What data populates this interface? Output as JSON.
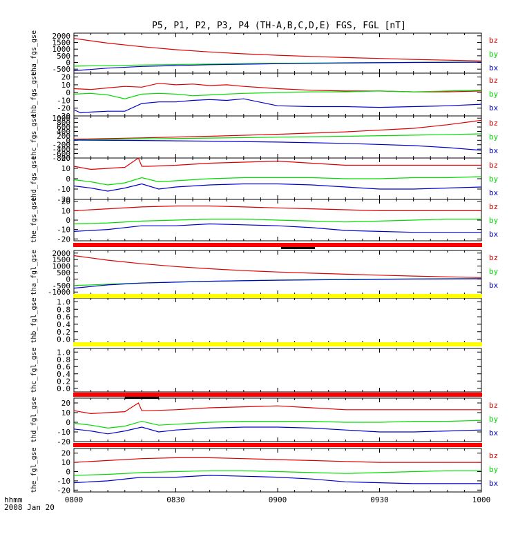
{
  "title": "P5, P1, P2, P3, P4 (TH-A,B,C,D,E) FGS, FGL [nT]",
  "footer": {
    "xunit": "hhmm",
    "date": "2008 Jan 20"
  },
  "colors": {
    "bz": "#dd0000",
    "by": "#00dd00",
    "bx": "#0000cc",
    "bar_red": "#ff0000",
    "bar_yellow": "#ffff00"
  },
  "chart_data": {
    "type": "line",
    "x_ticks": [
      "0800",
      "0830",
      "0900",
      "0930",
      "1000"
    ],
    "x_range_minutes": [
      480,
      600
    ],
    "panels": [
      {
        "ylabel": "tha_fgs_gse",
        "ylim": [
          -800,
          2200
        ],
        "yticks": [
          "2000",
          "1500",
          "1000",
          "500",
          "0",
          "-500"
        ],
        "series": [
          {
            "name": "bz",
            "x": [
              480,
              490,
              500,
              510,
              520,
              530,
              540,
              550,
              560,
              570,
              580,
              590,
              600
            ],
            "y": [
              1800,
              1450,
              1180,
              960,
              790,
              650,
              540,
              450,
              370,
              300,
              230,
              170,
              110
            ]
          },
          {
            "name": "by",
            "x": [
              480,
              500,
              520,
              540,
              560,
              580,
              600
            ],
            "y": [
              -280,
              -190,
              -120,
              -60,
              -20,
              10,
              40
            ]
          },
          {
            "name": "bx",
            "x": [
              480,
              490,
              500,
              520,
              540,
              560,
              580,
              600
            ],
            "y": [
              -620,
              -420,
              -300,
              -170,
              -90,
              -40,
              0,
              20
            ]
          }
        ]
      },
      {
        "ylabel": "thb_fgs_gse",
        "ylim": [
          -30,
          25
        ],
        "yticks": [
          "20",
          "10",
          "0",
          "-10",
          "-20",
          "-30"
        ],
        "series": [
          {
            "name": "bz",
            "x": [
              480,
              485,
              490,
              495,
              500,
              505,
              510,
              515,
              520,
              525,
              530,
              540,
              550,
              560,
              570,
              580,
              590,
              600
            ],
            "y": [
              5,
              4,
              6,
              8,
              7,
              12,
              10,
              11,
              9,
              10,
              8,
              5,
              3,
              2,
              2,
              1,
              1,
              2
            ]
          },
          {
            "name": "by",
            "x": [
              480,
              485,
              490,
              495,
              500,
              505,
              510,
              515,
              520,
              525,
              530,
              540,
              550,
              560,
              570,
              580,
              590,
              600
            ],
            "y": [
              -2,
              -1,
              -3,
              -8,
              -2,
              -1,
              -2,
              -4,
              -3,
              -2,
              -1,
              0,
              1,
              1,
              2,
              1,
              2,
              3
            ]
          },
          {
            "name": "bx",
            "x": [
              480,
              482,
              485,
              490,
              495,
              500,
              505,
              510,
              515,
              520,
              525,
              530,
              540,
              550,
              560,
              570,
              580,
              590,
              600
            ],
            "y": [
              -22,
              -26,
              -25,
              -24,
              -24,
              -14,
              -12,
              -12,
              -10,
              -9,
              -10,
              -8,
              -17,
              -18,
              -18,
              -19,
              -18,
              -17,
              -15
            ]
          }
        ]
      },
      {
        "ylabel": "thc_fgs_gse",
        "ylim": [
          -800,
          1100
        ],
        "yticks": [
          "1000",
          "800",
          "600",
          "400",
          "200",
          "0",
          "-200",
          "-400",
          "-600",
          "-800"
        ],
        "series": [
          {
            "name": "bz",
            "x": [
              480,
              500,
              520,
              540,
              560,
              580,
              590,
              600
            ],
            "y": [
              50,
              110,
              180,
              270,
              380,
              540,
              700,
              900
            ]
          },
          {
            "name": "by",
            "x": [
              480,
              500,
              520,
              540,
              560,
              580,
              600
            ],
            "y": [
              20,
              60,
              100,
              140,
              180,
              230,
              290
            ]
          },
          {
            "name": "bx",
            "x": [
              480,
              500,
              520,
              540,
              560,
              580,
              590,
              600
            ],
            "y": [
              10,
              -10,
              -40,
              -80,
              -140,
              -240,
              -330,
              -450
            ]
          }
        ]
      },
      {
        "ylabel": "thd_fgs_gse",
        "ylim": [
          -20,
          20
        ],
        "yticks": [
          "20",
          "10",
          "0",
          "-10",
          "-20"
        ],
        "series": [
          {
            "name": "bz",
            "x": [
              480,
              485,
              490,
              495,
              499,
              500,
              502,
              510,
              520,
              530,
              540,
              550,
              560,
              570,
              580,
              590,
              600
            ],
            "y": [
              12,
              9,
              10,
              11,
              20,
              12,
              12,
              13,
              15,
              16,
              17,
              15,
              13,
              13,
              13,
              13,
              13
            ]
          },
          {
            "name": "by",
            "x": [
              480,
              485,
              490,
              495,
              500,
              505,
              510,
              520,
              530,
              540,
              550,
              560,
              570,
              580,
              590,
              600
            ],
            "y": [
              -1,
              -3,
              -6,
              -4,
              1,
              -3,
              -2,
              0,
              1,
              1,
              1,
              0,
              0,
              1,
              1,
              2
            ]
          },
          {
            "name": "bx",
            "x": [
              480,
              485,
              490,
              495,
              500,
              505,
              510,
              520,
              530,
              540,
              550,
              560,
              570,
              580,
              590,
              600
            ],
            "y": [
              -7,
              -9,
              -12,
              -9,
              -5,
              -10,
              -8,
              -6,
              -5,
              -5,
              -6,
              -8,
              -10,
              -10,
              -9,
              -8
            ]
          }
        ]
      },
      {
        "ylabel": "the_fgs_gse",
        "ylim": [
          -22,
          22
        ],
        "yticks": [
          "20",
          "10",
          "0",
          "-10",
          "-20"
        ],
        "series": [
          {
            "name": "bz",
            "x": [
              480,
              490,
              500,
              510,
              520,
              530,
              540,
              550,
              560,
              570,
              580,
              590,
              600
            ],
            "y": [
              10,
              12,
              14,
              15,
              15,
              14,
              13,
              12,
              11,
              10,
              10,
              10,
              10
            ]
          },
          {
            "name": "by",
            "x": [
              480,
              490,
              500,
              510,
              520,
              530,
              540,
              550,
              560,
              570,
              580,
              590,
              600
            ],
            "y": [
              -4,
              -3,
              -1,
              0,
              1,
              1,
              0,
              -1,
              -2,
              -1,
              0,
              1,
              1
            ]
          },
          {
            "name": "bx",
            "x": [
              480,
              490,
              500,
              510,
              520,
              530,
              540,
              550,
              560,
              570,
              580,
              590,
              600
            ],
            "y": [
              -12,
              -10,
              -6,
              -6,
              -4,
              -5,
              -6,
              -8,
              -11,
              -12,
              -13,
              -13,
              -13
            ]
          }
        ]
      },
      {
        "ylabel": "tha_fgl_gse",
        "ylim": [
          -1200,
          2200
        ],
        "yticks": [
          "2000",
          "1500",
          "1000",
          "500",
          "0",
          "-500",
          "-1000"
        ],
        "series": [
          {
            "name": "bz",
            "x": [
              480,
              490,
              500,
              510,
              520,
              530,
              540,
              550,
              560,
              570,
              580,
              590,
              600
            ],
            "y": [
              1800,
              1450,
              1180,
              960,
              790,
              650,
              540,
              450,
              370,
              300,
              230,
              170,
              110
            ]
          },
          {
            "name": "by",
            "x": [
              480,
              500,
              520,
              540,
              560,
              580,
              600
            ],
            "y": [
              -500,
              -300,
              -170,
              -80,
              -20,
              10,
              40
            ]
          },
          {
            "name": "bx",
            "x": [
              480,
              490,
              500,
              520,
              540,
              560,
              580,
              600
            ],
            "y": [
              -700,
              -450,
              -310,
              -170,
              -90,
              -40,
              0,
              20
            ]
          }
        ]
      },
      {
        "ylabel": "thb_fgl_gse",
        "ylim": [
          -0.1,
          1.1
        ],
        "yticks": [
          "1.0",
          "0.8",
          "0.6",
          "0.4",
          "0.2",
          "0.0"
        ],
        "series": []
      },
      {
        "ylabel": "thc_fgl_gse",
        "ylim": [
          -0.1,
          1.1
        ],
        "yticks": [
          "1.0",
          "0.8",
          "0.6",
          "0.4",
          "0.2",
          "0.0"
        ],
        "series": []
      },
      {
        "ylabel": "thd_fgl_gse",
        "ylim": [
          -20,
          25
        ],
        "yticks": [
          "20",
          "10",
          "0",
          "-10",
          "-20"
        ],
        "series": [
          {
            "name": "bz",
            "x": [
              480,
              485,
              490,
              495,
              499,
              500,
              502,
              510,
              520,
              530,
              540,
              550,
              560,
              570,
              580,
              590,
              600
            ],
            "y": [
              12,
              9,
              10,
              11,
              20,
              12,
              12,
              13,
              15,
              16,
              17,
              15,
              13,
              13,
              13,
              13,
              13
            ]
          },
          {
            "name": "by",
            "x": [
              480,
              485,
              490,
              495,
              500,
              505,
              510,
              520,
              530,
              540,
              550,
              560,
              570,
              580,
              590,
              600
            ],
            "y": [
              -1,
              -3,
              -6,
              -4,
              1,
              -3,
              -2,
              0,
              1,
              1,
              1,
              0,
              0,
              1,
              1,
              2
            ]
          },
          {
            "name": "bx",
            "x": [
              480,
              485,
              490,
              495,
              500,
              505,
              510,
              520,
              530,
              540,
              550,
              560,
              570,
              580,
              590,
              600
            ],
            "y": [
              -7,
              -9,
              -12,
              -9,
              -5,
              -10,
              -8,
              -6,
              -5,
              -5,
              -6,
              -8,
              -10,
              -10,
              -9,
              -8
            ]
          }
        ]
      },
      {
        "ylabel": "the_fgl_gse",
        "ylim": [
          -22,
          25
        ],
        "yticks": [
          "20",
          "10",
          "0",
          "-10",
          "-20"
        ],
        "series": [
          {
            "name": "bz",
            "x": [
              480,
              490,
              500,
              510,
              520,
              530,
              540,
              550,
              560,
              570,
              580,
              590,
              600
            ],
            "y": [
              10,
              12,
              14,
              15,
              15,
              14,
              13,
              12,
              11,
              10,
              10,
              10,
              10
            ]
          },
          {
            "name": "by",
            "x": [
              480,
              490,
              500,
              510,
              520,
              530,
              540,
              550,
              560,
              570,
              580,
              590,
              600
            ],
            "y": [
              -4,
              -3,
              -1,
              0,
              1,
              1,
              0,
              -1,
              -2,
              -1,
              0,
              1,
              1
            ]
          },
          {
            "name": "bx",
            "x": [
              480,
              490,
              500,
              510,
              520,
              530,
              540,
              550,
              560,
              570,
              580,
              590,
              600
            ],
            "y": [
              -12,
              -10,
              -6,
              -6,
              -4,
              -5,
              -6,
              -8,
              -11,
              -12,
              -13,
              -13,
              -13
            ]
          }
        ]
      }
    ],
    "mode_bars": [
      {
        "after_panel": 4,
        "color": "red",
        "segment_minutes": [
          541,
          551
        ]
      },
      {
        "after_panel": 5,
        "color": "yellow"
      },
      {
        "after_panel": 6,
        "color": "yellow"
      },
      {
        "after_panel": 7,
        "color": "red",
        "segment_minutes": [
          495,
          505
        ]
      },
      {
        "after_panel": 8,
        "color": "red"
      }
    ]
  }
}
